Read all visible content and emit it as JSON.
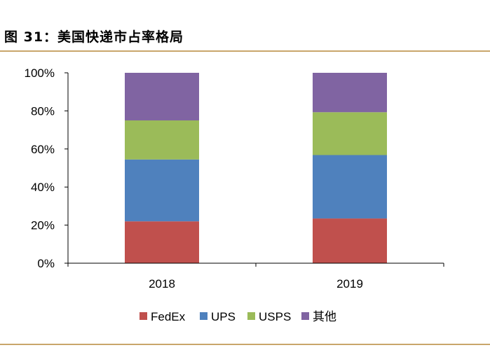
{
  "figure": {
    "title": "图 31：美国快递市占率格局",
    "rule_color": "#C9A66B"
  },
  "chart_data": {
    "type": "bar",
    "stacked": true,
    "categories": [
      "2018",
      "2019"
    ],
    "series": [
      {
        "name": "FedEx",
        "color": "#C0504D",
        "values": [
          22,
          23.5
        ]
      },
      {
        "name": "UPS",
        "color": "#4F81BD",
        "values": [
          32.5,
          33.3
        ]
      },
      {
        "name": "USPS",
        "color": "#9BBB59",
        "values": [
          20.5,
          22.5
        ]
      },
      {
        "name": "其他",
        "color": "#8064A2",
        "values": [
          25,
          20.7
        ]
      }
    ],
    "ylim": [
      0,
      100
    ],
    "yticks": [
      "0%",
      "20%",
      "40%",
      "60%",
      "80%",
      "100%"
    ],
    "ytick_values": [
      0,
      20,
      40,
      60,
      80,
      100
    ],
    "grid": false,
    "legend_position": "bottom"
  }
}
